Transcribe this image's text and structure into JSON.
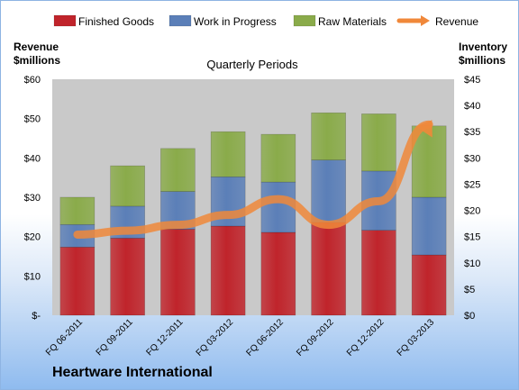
{
  "company": "Heartware International",
  "chart_data": {
    "type": "bar",
    "stacked": true,
    "title": "Quarterly Periods",
    "categories": [
      "FQ 06-2011",
      "FQ 09-2011",
      "FQ 12-2011",
      "FQ 03-2012",
      "FQ 06-2012",
      "FQ 09-2012",
      "FQ 12-2012",
      "FQ 03-2013"
    ],
    "series": [
      {
        "name": "Finished Goods",
        "axis": "right",
        "color": "#c0242b",
        "values": [
          13.0,
          14.7,
          16.4,
          17.0,
          15.8,
          17.7,
          16.2,
          11.5
        ]
      },
      {
        "name": "Work in Progress",
        "axis": "right",
        "color": "#5b7fb8",
        "values": [
          4.3,
          6.1,
          7.2,
          9.4,
          9.6,
          11.9,
          11.3,
          11.0
        ]
      },
      {
        "name": "Raw Materials",
        "axis": "right",
        "color": "#8aab4a",
        "values": [
          5.2,
          7.7,
          8.2,
          8.6,
          9.1,
          9.0,
          10.9,
          13.6
        ]
      }
    ],
    "line_series": {
      "name": "Revenue",
      "axis": "left",
      "color": "#f0883a",
      "values": [
        20.5,
        21.5,
        23.0,
        25.5,
        29.5,
        23.0,
        29.0,
        48.5
      ]
    },
    "left_axis": {
      "label_line1": "Revenue",
      "label_line2": "$millions",
      "ylim": [
        0,
        60
      ],
      "ticks": [
        "$-",
        "$10",
        "$20",
        "$30",
        "$40",
        "$50",
        "$60"
      ]
    },
    "right_axis": {
      "label_line1": "Inventory",
      "label_line2": "$millions",
      "ylim": [
        0,
        45
      ],
      "ticks": [
        "$0",
        "$5",
        "$10",
        "$15",
        "$20",
        "$25",
        "$30",
        "$35",
        "$40",
        "$45"
      ]
    },
    "legend": [
      "Finished Goods",
      "Work in Progress",
      "Raw Materials",
      "Revenue"
    ],
    "legend_position": "top",
    "grid": false
  }
}
